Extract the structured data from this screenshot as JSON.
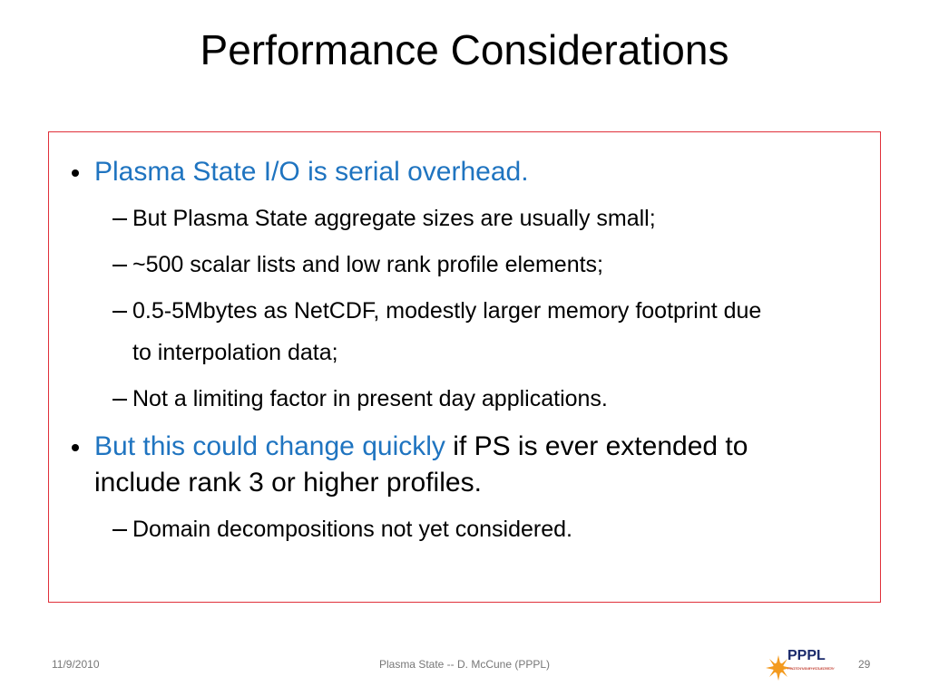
{
  "title": "Performance Considerations",
  "bullets": [
    {
      "level": 1,
      "runs": [
        {
          "text": "Plasma State I/O is serial overhead.",
          "color": "#1f74c0"
        }
      ]
    },
    {
      "level": 2,
      "runs": [
        {
          "text": "But Plasma State aggregate sizes are usually small;"
        }
      ]
    },
    {
      "level": 2,
      "runs": [
        {
          "text": "~500 scalar lists and low rank profile elements;"
        }
      ]
    },
    {
      "level": 2,
      "runs": [
        {
          "text": "0.5-5Mbytes as NetCDF, modestly larger memory footprint due to interpolation data;"
        }
      ]
    },
    {
      "level": 2,
      "runs": [
        {
          "text": "Not a limiting factor in present day applications."
        }
      ]
    },
    {
      "level": 1,
      "runs": [
        {
          "text": "But this could change quickly",
          "color": "#1f74c0"
        },
        {
          "text": " if PS is ever extended to include rank 3 or higher profiles."
        }
      ]
    },
    {
      "level": 2,
      "runs": [
        {
          "text": "Domain decompositions not yet considered."
        }
      ]
    }
  ],
  "footer": {
    "date": "11/9/2010",
    "center": "Plasma State  -- D. McCune (PPPL)",
    "page": "29",
    "logo": {
      "name": "PPPL",
      "subtitle": "PRINCETON PLASMA PHYSICS LABORATORY"
    }
  }
}
